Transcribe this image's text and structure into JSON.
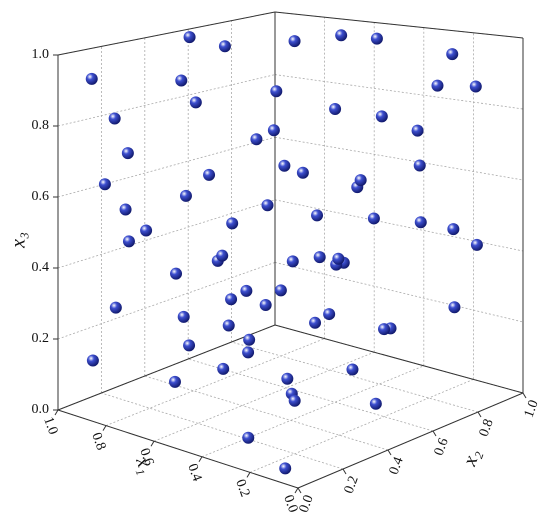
{
  "chart_data": {
    "type": "scatter3d",
    "xlabel": "x₁",
    "ylabel": "x₂",
    "zlabel": "x₃",
    "xlim": [
      0,
      1
    ],
    "ylim": [
      0,
      1
    ],
    "zlim": [
      0,
      1
    ],
    "xticks": [
      {
        "value": 0,
        "label": "0.0"
      },
      0.2,
      0.4,
      0.6,
      0.8,
      {
        "value": 1,
        "label": "1.0"
      }
    ],
    "yticks": [
      {
        "value": 0,
        "label": "0.0"
      },
      0.2,
      0.4,
      0.6,
      0.8,
      {
        "value": 1,
        "label": "1.0"
      }
    ],
    "zticks": [
      {
        "value": 0,
        "label": "0.0"
      },
      0.2,
      0.4,
      0.6,
      0.8,
      {
        "value": 1,
        "label": "1.0"
      }
    ],
    "grid": true,
    "color": "#3d4fd0",
    "x": [
      0.95,
      0.85,
      0.7,
      0.6,
      0.5,
      0.95,
      0.15,
      0.3,
      0.9,
      0.7,
      0.55,
      0.4,
      0.3,
      0.2,
      0.1,
      0.45,
      0.8,
      0.6,
      0.35,
      0.25,
      0.85,
      0.65,
      0.45,
      0.15,
      0.05,
      0.2,
      0.9,
      0.75,
      0.55,
      0.5,
      0.3,
      0.1,
      0.05,
      0.25,
      0.6,
      0.4,
      0.95,
      0.7,
      0.35,
      0.15,
      0.85,
      0.6,
      0.05,
      0.3,
      0.5,
      0.75,
      0.2,
      0.1,
      0.45,
      0.9,
      0.65,
      0.35,
      0.2,
      0.05,
      0.55,
      0.8,
      0.1,
      0.3,
      0.7,
      0.25,
      0.05,
      0.4,
      0.65,
      0.15,
      0.8,
      0.95,
      0.4,
      0.1,
      0.5,
      0.85
    ],
    "y": [
      0.55,
      0.6,
      0.75,
      0.85,
      0.9,
      0.1,
      0.85,
      0.95,
      0.15,
      0.3,
      0.5,
      0.6,
      0.7,
      0.75,
      0.65,
      0.3,
      0.1,
      0.25,
      0.4,
      0.55,
      0.05,
      0.2,
      0.35,
      0.5,
      0.6,
      0.3,
      0.2,
      0.05,
      0.3,
      0.2,
      0.3,
      0.8,
      0.85,
      0.45,
      0.1,
      0.2,
      0.35,
      0.4,
      0.55,
      0.3,
      0.1,
      0.35,
      0.75,
      0.4,
      0.05,
      0.3,
      0.6,
      0.35,
      0.15,
      0.05,
      0.15,
      0.35,
      0.2,
      0.4,
      0.55,
      0.65,
      0.05,
      0.1,
      0.45,
      0.05,
      0.15,
      0.7,
      0.6,
      0.1,
      0.8,
      0.9,
      0.85,
      0.9,
      0.75,
      0.4
    ],
    "z": [
      0.99,
      0.97,
      0.98,
      0.99,
      0.98,
      0.93,
      0.98,
      0.85,
      0.82,
      0.88,
      0.9,
      0.85,
      0.82,
      0.78,
      0.72,
      0.82,
      0.75,
      0.7,
      0.72,
      0.68,
      0.66,
      0.64,
      0.62,
      0.6,
      0.58,
      0.65,
      0.55,
      0.52,
      0.56,
      0.5,
      0.5,
      0.5,
      0.45,
      0.48,
      0.45,
      0.42,
      0.45,
      0.4,
      0.42,
      0.38,
      0.3,
      0.32,
      0.3,
      0.3,
      0.28,
      0.25,
      0.25,
      0.22,
      0.2,
      0.15,
      0.12,
      0.1,
      0.15,
      0.12,
      0.05,
      0.05,
      0.02,
      0.05,
      0.2,
      0.35,
      0.6,
      0.6,
      0.75,
      0.85,
      0.2,
      0.1,
      0.15,
      0.88,
      0.35,
      0.9
    ]
  }
}
